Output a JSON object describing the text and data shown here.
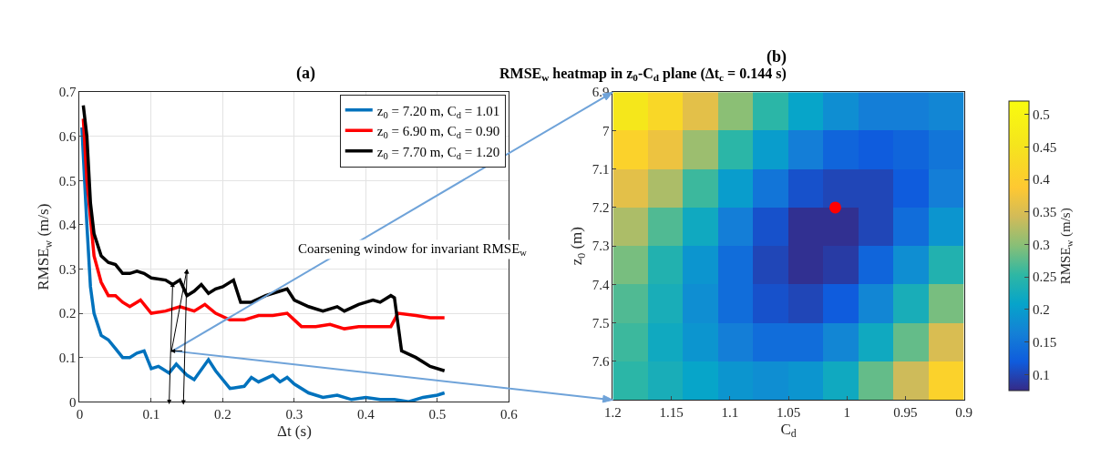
{
  "chart_data": [
    {
      "type": "line",
      "title": "(a)",
      "xlabel": "Δt (s)",
      "ylabel": "RMSE$_{w}$ (m/s)",
      "xlim": [
        0,
        0.6
      ],
      "xticks": [
        0,
        0.1,
        0.2,
        0.3,
        0.4,
        0.5,
        0.6
      ],
      "ylim": [
        0,
        0.7
      ],
      "yticks": [
        0,
        0.1,
        0.2,
        0.3,
        0.4,
        0.5,
        0.6,
        0.7
      ],
      "grid": true,
      "legend": "top right",
      "line_style": "solid",
      "marker": "none",
      "annotations": [
        "Coarsening window for invariant RMSE$_{w}$"
      ],
      "series": [
        {
          "name": "z$_{0}$ = 7.20 m, C$_{d}$ = 1.01",
          "color": "#0072bd",
          "x": [
            0.003,
            0.01,
            0.015,
            0.02,
            0.03,
            0.04,
            0.05,
            0.06,
            0.07,
            0.08,
            0.09,
            0.1,
            0.11,
            0.115,
            0.125,
            0.135,
            0.15,
            0.16,
            0.18,
            0.19,
            0.21,
            0.23,
            0.24,
            0.25,
            0.27,
            0.28,
            0.29,
            0.3,
            0.32,
            0.34,
            0.36,
            0.38,
            0.4,
            0.42,
            0.44,
            0.46,
            0.48,
            0.5,
            0.51
          ],
          "values": [
            0.62,
            0.4,
            0.26,
            0.2,
            0.15,
            0.14,
            0.12,
            0.1,
            0.1,
            0.11,
            0.115,
            0.075,
            0.08,
            0.075,
            0.065,
            0.085,
            0.06,
            0.05,
            0.095,
            0.07,
            0.03,
            0.035,
            0.055,
            0.045,
            0.06,
            0.045,
            0.055,
            0.04,
            0.02,
            0.01,
            0.015,
            0.005,
            0.01,
            0.005,
            0.005,
            0.0,
            0.01,
            0.015,
            0.02
          ]
        },
        {
          "name": "z$_{0}$ = 6.90 m, C$_{d}$ = 0.90",
          "color": "#ff0000",
          "x": [
            0.005,
            0.01,
            0.02,
            0.03,
            0.04,
            0.05,
            0.06,
            0.07,
            0.08,
            0.085,
            0.1,
            0.12,
            0.14,
            0.16,
            0.175,
            0.19,
            0.21,
            0.23,
            0.25,
            0.27,
            0.29,
            0.3,
            0.31,
            0.33,
            0.35,
            0.37,
            0.39,
            0.42,
            0.435,
            0.445,
            0.47,
            0.49,
            0.51
          ],
          "values": [
            0.64,
            0.5,
            0.33,
            0.27,
            0.24,
            0.24,
            0.225,
            0.215,
            0.225,
            0.23,
            0.2,
            0.205,
            0.215,
            0.205,
            0.22,
            0.2,
            0.185,
            0.185,
            0.195,
            0.195,
            0.2,
            0.185,
            0.17,
            0.17,
            0.175,
            0.165,
            0.17,
            0.17,
            0.17,
            0.2,
            0.195,
            0.19,
            0.19
          ]
        },
        {
          "name": "z$_{0}$ = 7.70 m, C$_{d}$ = 1.20",
          "color": "#000000",
          "x": [
            0.005,
            0.01,
            0.015,
            0.02,
            0.03,
            0.04,
            0.05,
            0.06,
            0.07,
            0.08,
            0.09,
            0.1,
            0.12,
            0.13,
            0.14,
            0.15,
            0.16,
            0.17,
            0.18,
            0.19,
            0.2,
            0.215,
            0.225,
            0.24,
            0.26,
            0.28,
            0.29,
            0.3,
            0.32,
            0.34,
            0.36,
            0.37,
            0.39,
            0.41,
            0.42,
            0.435,
            0.44,
            0.45,
            0.47,
            0.49,
            0.51
          ],
          "values": [
            0.67,
            0.6,
            0.45,
            0.38,
            0.33,
            0.315,
            0.31,
            0.29,
            0.29,
            0.295,
            0.29,
            0.28,
            0.275,
            0.265,
            0.275,
            0.24,
            0.25,
            0.265,
            0.245,
            0.255,
            0.26,
            0.275,
            0.225,
            0.225,
            0.24,
            0.25,
            0.255,
            0.23,
            0.215,
            0.205,
            0.215,
            0.205,
            0.22,
            0.23,
            0.225,
            0.24,
            0.235,
            0.115,
            0.1,
            0.08,
            0.07
          ]
        }
      ]
    },
    {
      "type": "heatmap",
      "title": "(b)",
      "subtitle": "RMSE$_{w}$ heatmap in z$_{0}$-C$_{d}$ plane (Δt$_{c}$ = 0.144 s)",
      "xlabel": "C$_{d}$",
      "ylabel": "z$_{0}$ (m)",
      "clabel": "RMSE$_{w}$ (m/s)",
      "xlim": [
        1.2,
        0.9
      ],
      "xticks": [
        1.2,
        1.15,
        1.1,
        1.05,
        1,
        0.95,
        0.9
      ],
      "ylim": [
        7.7,
        6.9
      ],
      "yticks": [
        6.9,
        7,
        7.1,
        7.2,
        7.3,
        7.4,
        7.5,
        7.6
      ],
      "clim": [
        0.075,
        0.52
      ],
      "cticks": [
        0.1,
        0.15,
        0.2,
        0.25,
        0.3,
        0.35,
        0.4,
        0.45,
        0.5
      ],
      "x": [
        1.185,
        1.155,
        1.125,
        1.095,
        1.065,
        1.035,
        1.005,
        0.975,
        0.945,
        0.915
      ],
      "y": [
        6.95,
        7.05,
        7.15,
        7.25,
        7.35,
        7.45,
        7.55,
        7.65
      ],
      "cells": [
        [
          0.46,
          0.42,
          0.36,
          0.3,
          0.25,
          0.21,
          0.18,
          0.16,
          0.16,
          0.17
        ],
        [
          0.41,
          0.37,
          0.31,
          0.25,
          0.2,
          0.16,
          0.13,
          0.12,
          0.13,
          0.15
        ],
        [
          0.36,
          0.32,
          0.26,
          0.2,
          0.15,
          0.11,
          0.1,
          0.1,
          0.12,
          0.16
        ],
        [
          0.32,
          0.27,
          0.22,
          0.16,
          0.11,
          0.08,
          0.08,
          0.1,
          0.14,
          0.19
        ],
        [
          0.29,
          0.24,
          0.19,
          0.14,
          0.1,
          0.08,
          0.09,
          0.13,
          0.18,
          0.24
        ],
        [
          0.27,
          0.23,
          0.18,
          0.14,
          0.11,
          0.1,
          0.12,
          0.17,
          0.23,
          0.29
        ],
        [
          0.26,
          0.22,
          0.19,
          0.16,
          0.14,
          0.14,
          0.17,
          0.22,
          0.28,
          0.35
        ],
        [
          0.25,
          0.23,
          0.21,
          0.19,
          0.18,
          0.19,
          0.22,
          0.28,
          0.34,
          0.41
        ]
      ],
      "series": [
        {
          "type": "scatter",
          "x": [
            1.01
          ],
          "values": [
            7.2
          ],
          "color": "#ff0000",
          "marker": "circle"
        }
      ]
    }
  ]
}
